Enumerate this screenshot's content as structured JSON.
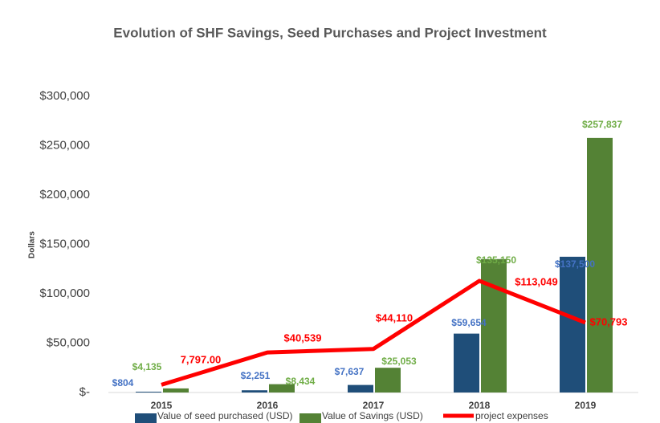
{
  "chart_data": {
    "type": "bar-line",
    "title": "Evolution of SHF Savings, Seed Purchases and Project Investment",
    "y_label": "Dollars",
    "categories": [
      "2015",
      "2016",
      "2017",
      "2018",
      "2019"
    ],
    "series": [
      {
        "name": "Value of seed purchased (USD)",
        "type": "bar",
        "color": "#1f4e79",
        "label_color": "#4472c4",
        "values": [
          804,
          2251,
          7637,
          59654,
          137500
        ],
        "value_labels": [
          "$804",
          "$2,251",
          "$7,637",
          "$59,654",
          "$137,500"
        ]
      },
      {
        "name": "Value of Savings (USD)",
        "type": "bar",
        "color": "#548235",
        "label_color": "#70ad47",
        "values": [
          4135,
          8434,
          25053,
          135150,
          257837
        ],
        "value_labels": [
          "$4,135",
          "$8,434",
          "$25,053",
          "$135,150",
          "$257,837"
        ]
      },
      {
        "name": "project expenses",
        "type": "line",
        "color": "#ff0000",
        "label_color": "#ff0000",
        "values": [
          7797,
          40539,
          44110,
          113049,
          70793
        ],
        "value_labels": [
          "7,797.00",
          "$40,539",
          "$44,110",
          "$113,049",
          "$70,793"
        ]
      }
    ],
    "ylim": [
      0,
      300000
    ],
    "yticks": [
      {
        "value": 0,
        "label": "$-"
      },
      {
        "value": 50000,
        "label": "$50,000"
      },
      {
        "value": 100000,
        "label": "$100,000"
      },
      {
        "value": 150000,
        "label": "$150,000"
      },
      {
        "value": 200000,
        "label": "$200,000"
      },
      {
        "value": 250000,
        "label": "$250,000"
      },
      {
        "value": 300000,
        "label": "$300,000"
      }
    ],
    "grid": false,
    "legend": "bottom"
  }
}
